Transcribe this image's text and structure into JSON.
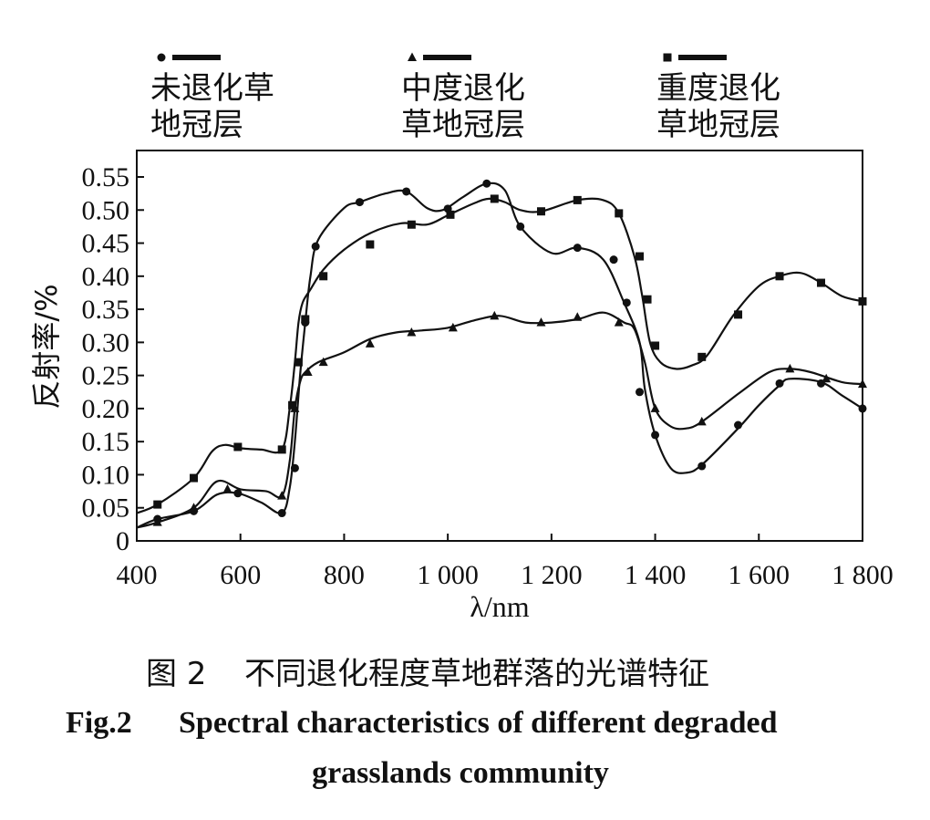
{
  "chart_data": {
    "type": "line",
    "xlabel": "λ/nm",
    "ylabel": "反射率/%",
    "xlim": [
      400,
      1800
    ],
    "ylim": [
      0,
      0.55
    ],
    "x_ticks": [
      "400",
      "600",
      "800",
      "1 000",
      "1 200",
      "1 400",
      "1 600",
      "1 800"
    ],
    "y_ticks": [
      "0",
      "0.05",
      "0.10",
      "0.15",
      "0.20",
      "0.25",
      "0.30",
      "0.35",
      "0.40",
      "0.45",
      "0.50",
      "0.55"
    ],
    "legend_placement": "top",
    "series": [
      {
        "name_line1": "未退化草",
        "name_line2": "地冠层",
        "marker": "circle",
        "x": [
          400,
          440,
          510,
          555,
          595,
          640,
          680,
          695,
          705,
          715,
          725,
          735,
          750,
          800,
          830,
          880,
          920,
          960,
          990,
          1030,
          1075,
          1110,
          1140,
          1200,
          1250,
          1300,
          1340,
          1370,
          1380,
          1400,
          1430,
          1460,
          1490,
          1560,
          1600,
          1640,
          1660,
          1720,
          1760,
          1800
        ],
        "y": [
          0.02,
          0.033,
          0.045,
          0.07,
          0.072,
          0.058,
          0.042,
          0.08,
          0.15,
          0.25,
          0.33,
          0.4,
          0.455,
          0.503,
          0.512,
          0.525,
          0.528,
          0.503,
          0.5,
          0.52,
          0.54,
          0.53,
          0.475,
          0.435,
          0.443,
          0.425,
          0.36,
          0.3,
          0.23,
          0.16,
          0.11,
          0.103,
          0.115,
          0.17,
          0.205,
          0.235,
          0.245,
          0.24,
          0.22,
          0.2
        ],
        "markers_x": [
          440,
          510,
          595,
          680,
          705,
          725,
          745,
          830,
          920,
          1000,
          1075,
          1140,
          1250,
          1320,
          1345,
          1370,
          1400,
          1490,
          1560,
          1640,
          1720,
          1800
        ],
        "markers_y": [
          0.033,
          0.045,
          0.072,
          0.042,
          0.11,
          0.33,
          0.445,
          0.512,
          0.528,
          0.502,
          0.54,
          0.475,
          0.443,
          0.425,
          0.36,
          0.225,
          0.16,
          0.113,
          0.175,
          0.238,
          0.238,
          0.2
        ]
      },
      {
        "name_line1": "中度退化",
        "name_line2": "草地冠层",
        "marker": "triangle",
        "x": [
          400,
          440,
          510,
          555,
          600,
          650,
          680,
          695,
          705,
          715,
          725,
          750,
          800,
          850,
          900,
          950,
          1000,
          1050,
          1100,
          1150,
          1200,
          1250,
          1300,
          1340,
          1360,
          1380,
          1400,
          1430,
          1460,
          1490,
          1560,
          1620,
          1660,
          1700,
          1760,
          1800
        ],
        "y": [
          0.02,
          0.028,
          0.05,
          0.09,
          0.078,
          0.075,
          0.068,
          0.12,
          0.2,
          0.24,
          0.255,
          0.27,
          0.285,
          0.305,
          0.315,
          0.318,
          0.322,
          0.333,
          0.34,
          0.33,
          0.33,
          0.335,
          0.345,
          0.33,
          0.32,
          0.27,
          0.2,
          0.173,
          0.17,
          0.18,
          0.222,
          0.255,
          0.26,
          0.255,
          0.24,
          0.237
        ],
        "markers_x": [
          440,
          510,
          575,
          680,
          705,
          730,
          760,
          850,
          930,
          1010,
          1090,
          1180,
          1250,
          1330,
          1400,
          1490,
          1660,
          1730,
          1800
        ],
        "markers_y": [
          0.028,
          0.05,
          0.078,
          0.068,
          0.2,
          0.255,
          0.27,
          0.298,
          0.315,
          0.322,
          0.34,
          0.33,
          0.338,
          0.33,
          0.2,
          0.18,
          0.26,
          0.245,
          0.237
        ]
      },
      {
        "name_line1": "重度退化",
        "name_line2": "草地冠层",
        "marker": "square",
        "x": [
          400,
          440,
          510,
          545,
          570,
          600,
          640,
          680,
          695,
          705,
          712,
          720,
          735,
          760,
          800,
          850,
          910,
          960,
          1000,
          1050,
          1080,
          1110,
          1140,
          1180,
          1250,
          1300,
          1330,
          1360,
          1375,
          1390,
          1410,
          1440,
          1470,
          1500,
          1550,
          1600,
          1640,
          1680,
          1720,
          1760,
          1800
        ],
        "y": [
          0.042,
          0.055,
          0.095,
          0.135,
          0.145,
          0.14,
          0.138,
          0.138,
          0.2,
          0.27,
          0.33,
          0.36,
          0.38,
          0.41,
          0.44,
          0.465,
          0.48,
          0.478,
          0.492,
          0.51,
          0.517,
          0.512,
          0.5,
          0.498,
          0.515,
          0.515,
          0.495,
          0.43,
          0.37,
          0.3,
          0.27,
          0.26,
          0.265,
          0.28,
          0.34,
          0.385,
          0.4,
          0.405,
          0.39,
          0.37,
          0.362
        ],
        "markers_x": [
          440,
          510,
          595,
          680,
          700,
          712,
          725,
          760,
          850,
          930,
          1005,
          1090,
          1180,
          1250,
          1330,
          1370,
          1385,
          1400,
          1490,
          1560,
          1640,
          1720,
          1800
        ],
        "markers_y": [
          0.055,
          0.095,
          0.142,
          0.138,
          0.205,
          0.27,
          0.335,
          0.4,
          0.448,
          0.478,
          0.493,
          0.517,
          0.498,
          0.515,
          0.495,
          0.43,
          0.365,
          0.295,
          0.278,
          0.342,
          0.4,
          0.39,
          0.362
        ]
      }
    ]
  },
  "caption": {
    "cn_label": "图 2",
    "cn_text": "不同退化程度草地群落的光谱特征",
    "en_label": "Fig.2",
    "en_line1": "Spectral characteristics of different degraded",
    "en_line2": "grasslands community"
  },
  "colors": {
    "ink": "#111111",
    "background": "#ffffff"
  }
}
